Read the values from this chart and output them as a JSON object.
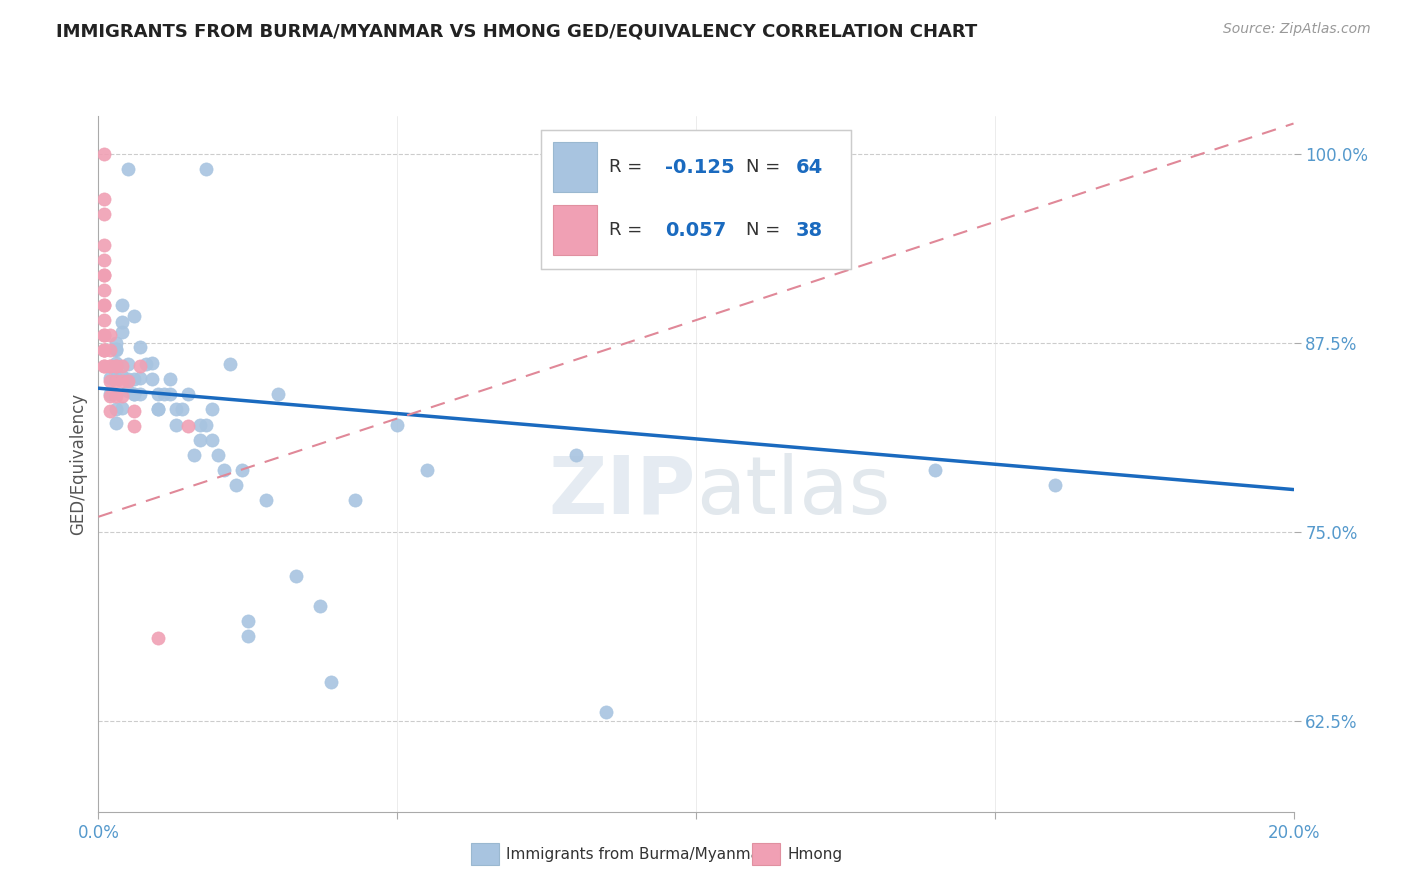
{
  "title": "IMMIGRANTS FROM BURMA/MYANMAR VS HMONG GED/EQUIVALENCY CORRELATION CHART",
  "source": "Source: ZipAtlas.com",
  "ylabel": "GED/Equivalency",
  "xlim": [
    0.0,
    0.2
  ],
  "ylim": [
    0.565,
    1.025
  ],
  "yticks": [
    0.625,
    0.75,
    0.875,
    1.0
  ],
  "ytick_labels": [
    "62.5%",
    "75.0%",
    "87.5%",
    "100.0%"
  ],
  "xticks": [
    0.0,
    0.05,
    0.1,
    0.15,
    0.2
  ],
  "xtick_labels": [
    "0.0%",
    "",
    "",
    "",
    "20.0%"
  ],
  "blue_R": -0.125,
  "blue_N": 64,
  "pink_R": 0.057,
  "pink_N": 38,
  "blue_color": "#a8c4e0",
  "pink_color": "#f0a0b4",
  "blue_line_color": "#1a6abf",
  "pink_line_color": "#e08898",
  "watermark_zip": "ZIP",
  "watermark_atlas": "atlas",
  "blue_line_x0": 0.0,
  "blue_line_y0": 0.845,
  "blue_line_x1": 0.2,
  "blue_line_y1": 0.778,
  "pink_line_x0": 0.0,
  "pink_line_y0": 0.76,
  "pink_line_x1": 0.2,
  "pink_line_y1": 1.02,
  "blue_scatter_x": [
    0.005,
    0.018,
    0.003,
    0.004,
    0.004,
    0.004,
    0.003,
    0.003,
    0.003,
    0.005,
    0.006,
    0.004,
    0.006,
    0.007,
    0.008,
    0.005,
    0.004,
    0.006,
    0.003,
    0.003,
    0.002,
    0.002,
    0.003,
    0.005,
    0.006,
    0.007,
    0.007,
    0.009,
    0.009,
    0.01,
    0.01,
    0.011,
    0.01,
    0.012,
    0.012,
    0.013,
    0.013,
    0.014,
    0.015,
    0.016,
    0.017,
    0.017,
    0.018,
    0.019,
    0.019,
    0.02,
    0.021,
    0.022,
    0.023,
    0.024,
    0.025,
    0.025,
    0.028,
    0.03,
    0.033,
    0.037,
    0.039,
    0.043,
    0.05,
    0.055,
    0.08,
    0.085,
    0.14,
    0.16
  ],
  "blue_scatter_y": [
    0.99,
    0.99,
    0.875,
    0.882,
    0.889,
    0.9,
    0.87,
    0.862,
    0.852,
    0.843,
    0.851,
    0.832,
    0.841,
    0.872,
    0.861,
    0.861,
    0.853,
    0.893,
    0.822,
    0.831,
    0.841,
    0.852,
    0.871,
    0.851,
    0.841,
    0.841,
    0.852,
    0.862,
    0.851,
    0.841,
    0.831,
    0.841,
    0.831,
    0.851,
    0.841,
    0.831,
    0.821,
    0.831,
    0.841,
    0.801,
    0.821,
    0.811,
    0.821,
    0.811,
    0.831,
    0.801,
    0.791,
    0.861,
    0.781,
    0.791,
    0.681,
    0.691,
    0.771,
    0.841,
    0.721,
    0.701,
    0.651,
    0.771,
    0.821,
    0.791,
    0.801,
    0.631,
    0.791,
    0.781
  ],
  "pink_scatter_x": [
    0.001,
    0.001,
    0.001,
    0.001,
    0.001,
    0.001,
    0.001,
    0.001,
    0.001,
    0.001,
    0.001,
    0.001,
    0.001,
    0.001,
    0.001,
    0.001,
    0.001,
    0.001,
    0.002,
    0.002,
    0.002,
    0.002,
    0.002,
    0.002,
    0.002,
    0.003,
    0.003,
    0.003,
    0.003,
    0.004,
    0.004,
    0.004,
    0.005,
    0.006,
    0.006,
    0.007,
    0.01,
    0.015
  ],
  "pink_scatter_y": [
    1.0,
    0.97,
    0.96,
    0.94,
    0.93,
    0.92,
    0.92,
    0.91,
    0.9,
    0.9,
    0.89,
    0.88,
    0.88,
    0.87,
    0.87,
    0.87,
    0.86,
    0.86,
    0.88,
    0.87,
    0.86,
    0.86,
    0.85,
    0.84,
    0.83,
    0.86,
    0.86,
    0.85,
    0.84,
    0.86,
    0.85,
    0.84,
    0.85,
    0.83,
    0.82,
    0.86,
    0.68,
    0.82
  ]
}
